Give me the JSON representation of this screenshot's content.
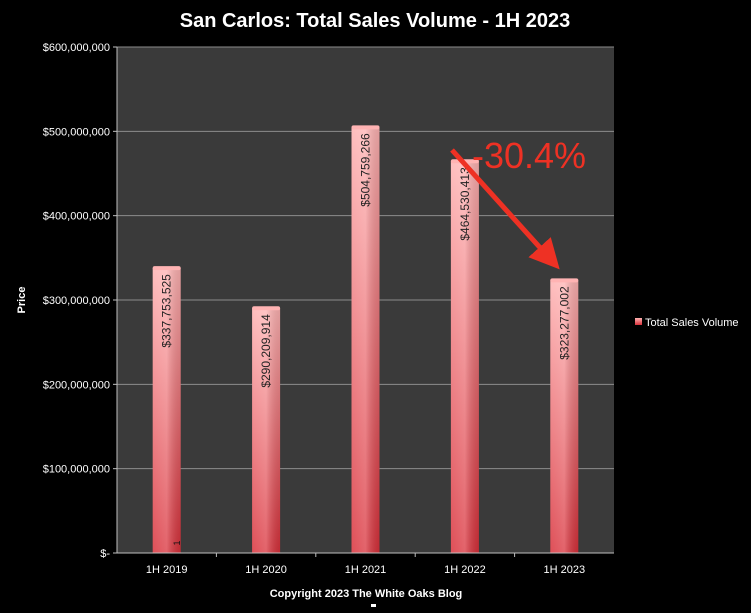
{
  "chart_data": {
    "type": "bar",
    "title": "San Carlos: Total Sales Volume - 1H 2023",
    "ylabel": "Price",
    "xlabel": "",
    "categories": [
      "1H 2019",
      "1H 2020",
      "1H 2021",
      "1H 2022",
      "1H 2023"
    ],
    "series": [
      {
        "name": "Total Sales Volume",
        "values": [
          337753525,
          290209914,
          504759266,
          464530413,
          323277002
        ],
        "labels": [
          "$337,753,525",
          "$290,209,914",
          "$504,759,266",
          "$464,530,413",
          "$323,277,002"
        ]
      }
    ],
    "ylim": [
      0,
      600000000
    ],
    "yticks": [
      0,
      100000000,
      200000000,
      300000000,
      400000000,
      500000000,
      600000000
    ],
    "ytick_labels": [
      "$-",
      "$100,000,000",
      "$200,000,000",
      "$300,000,000",
      "$400,000,000",
      "$500,000,000",
      "$600,000,000"
    ],
    "grid": true,
    "legend_position": "right",
    "annotation": {
      "text": "-30.4%",
      "color": "#ee3124",
      "from_category": "1H 2022",
      "to_category": "1H 2023"
    },
    "colors": {
      "bar_top": "#ffb3b3",
      "bar_bottom": "#d9303a",
      "plot_bg": "#3a3a3a",
      "grid": "#8c8c8c",
      "page_bg": "#000000"
    },
    "footer": "Copyright 2023 The White  Oaks Blog",
    "stray_mark": "1"
  }
}
